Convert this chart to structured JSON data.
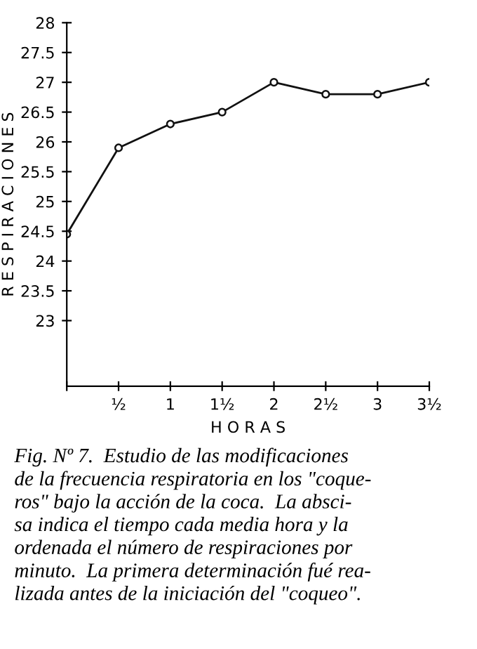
{
  "chart_data": {
    "type": "line",
    "xlabel": "H O R A S",
    "ylabel": "R E S P I R A C I O N E S",
    "x": [
      0,
      0.5,
      1,
      1.5,
      2,
      2.5,
      3,
      3.5
    ],
    "series": [
      {
        "color": "#111111",
        "values": [
          24.45,
          25.9,
          26.3,
          26.5,
          27.0,
          26.8,
          26.8,
          27.0
        ]
      }
    ],
    "xlim": [
      0,
      3.5
    ],
    "xticks": [
      {
        "value": 0,
        "label": null
      },
      {
        "value": 0.5,
        "label": "½"
      },
      1,
      {
        "value": 1.5,
        "label": "1½"
      },
      2,
      {
        "value": 2.5,
        "label": "2½"
      },
      3,
      {
        "value": 3.5,
        "label": "3½"
      }
    ],
    "ylim": [
      21.9,
      28
    ],
    "yticks": [
      23,
      23.5,
      24,
      24.5,
      25,
      25.5,
      26,
      26.5,
      27,
      27.5,
      28
    ],
    "grid": false,
    "legend": false,
    "marker": "circle",
    "line_style": "solid",
    "annotations": [
      "Fig. Nº 7.  Estudio de las modificaciones\nde la frecuencia respiratoria en los \"coque-\nros\" bajo la acción de la coca.  La absci-\nsa indica el tiempo cada media hora y la\nordenada el número de respiraciones por\nminuto.  La primera determinación fué rea-\nlizada antes de la iniciación del \"coqueo\"."
    ]
  }
}
